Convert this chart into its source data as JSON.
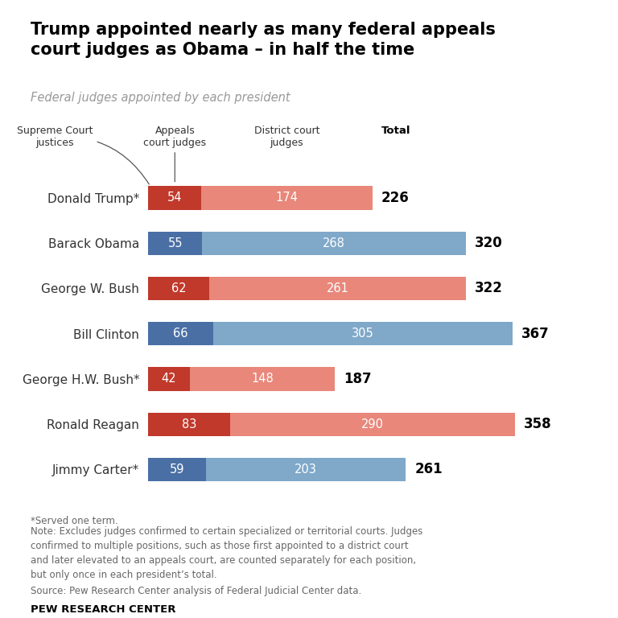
{
  "title": "Trump appointed nearly as many federal appeals\ncourt judges as Obama – in half the time",
  "subtitle": "Federal judges appointed by each president",
  "presidents": [
    "Donald Trump*",
    "Barack Obama",
    "George W. Bush",
    "Bill Clinton",
    "George H.W. Bush*",
    "Ronald Reagan",
    "Jimmy Carter*"
  ],
  "appeals": [
    54,
    55,
    62,
    66,
    42,
    83,
    59
  ],
  "district": [
    174,
    268,
    261,
    305,
    148,
    290,
    203
  ],
  "totals": [
    226,
    320,
    322,
    367,
    187,
    358,
    261
  ],
  "party": [
    "R",
    "D",
    "R",
    "D",
    "R",
    "R",
    "D"
  ],
  "colors_appeals_R": "#c0392b",
  "colors_appeals_D": "#4a6fa5",
  "colors_district_R": "#e8877a",
  "colors_district_D": "#7fa8c9",
  "note1": "*Served one term.",
  "note2": "Note: Excludes judges confirmed to certain specialized or territorial courts. Judges\nconfirmed to multiple positions, such as those first appointed to a district court\nand later elevated to an appeals court, are counted separately for each position,\nbut only once in each president’s total.",
  "source": "Source: Pew Research Center analysis of Federal Judicial Center data.",
  "footer": "PEW RESEARCH CENTER",
  "bg_color": "#ffffff",
  "text_color": "#333333",
  "note_color": "#666666"
}
